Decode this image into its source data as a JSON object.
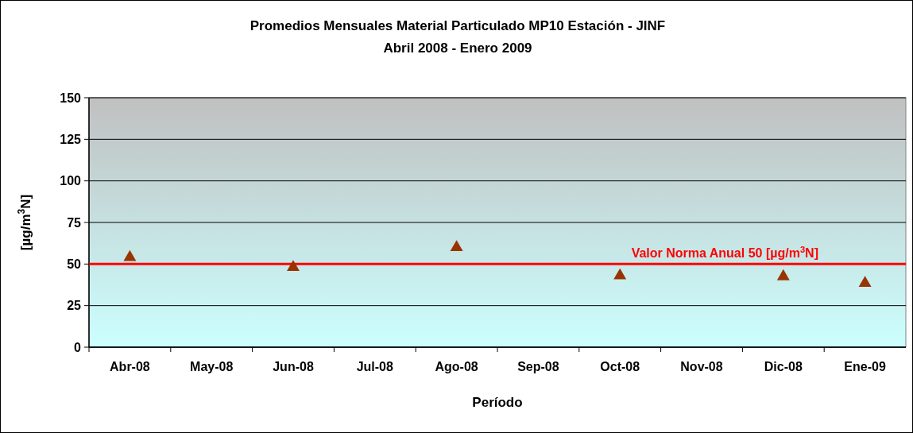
{
  "chart_data": {
    "type": "scatter",
    "title": "Promedios Mensuales Material  Particulado MP10 Estación - JINF",
    "subtitle": "Abril 2008 - Enero 2009",
    "xlabel": "Período",
    "ylabel": "[µg/m$^{3}$N]",
    "categories": [
      "Abr-08",
      "May-08",
      "Jun-08",
      "Jul-08",
      "Ago-08",
      "Sep-08",
      "Oct-08",
      "Nov-08",
      "Dic-08",
      "Ene-09"
    ],
    "series": [
      {
        "color": "#993300",
        "values": [
          54,
          null,
          48,
          null,
          60,
          null,
          43,
          null,
          42.5,
          38.5
        ]
      }
    ],
    "marker": "triangle",
    "ylim": [
      0,
      150
    ],
    "yticks": [
      0,
      25,
      50,
      75,
      100,
      125,
      150
    ],
    "grid": "y",
    "ref_lines": [
      {
        "axis": "y",
        "value": 50,
        "label": "Valor Norma Anual 50 [µg/m$^{3}$N]",
        "color": "#ff0000"
      }
    ]
  }
}
